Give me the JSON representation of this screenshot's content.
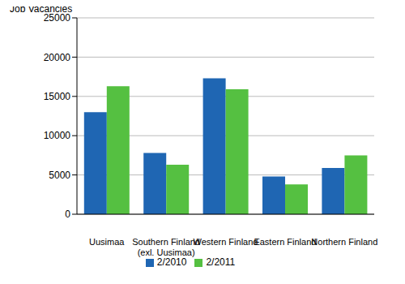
{
  "chart_data": {
    "type": "bar",
    "y_label": "Job Vacancies",
    "categories": [
      "Uusimaa",
      "Southern Finland (exl. Uusimaa)",
      "Western Finland",
      "Eastern Finland",
      "Northern Finland"
    ],
    "series": [
      {
        "name": "2/2010",
        "color": "#1f66b3",
        "values": [
          13000,
          7800,
          17300,
          4800,
          5900
        ]
      },
      {
        "name": "2/2011",
        "color": "#55c041",
        "values": [
          16300,
          6300,
          15900,
          3800,
          7500
        ]
      }
    ],
    "ylim": [
      0,
      25000
    ],
    "yticks": [
      0,
      5000,
      10000,
      15000,
      20000,
      25000
    ],
    "grid": true,
    "legend": "bottom"
  }
}
